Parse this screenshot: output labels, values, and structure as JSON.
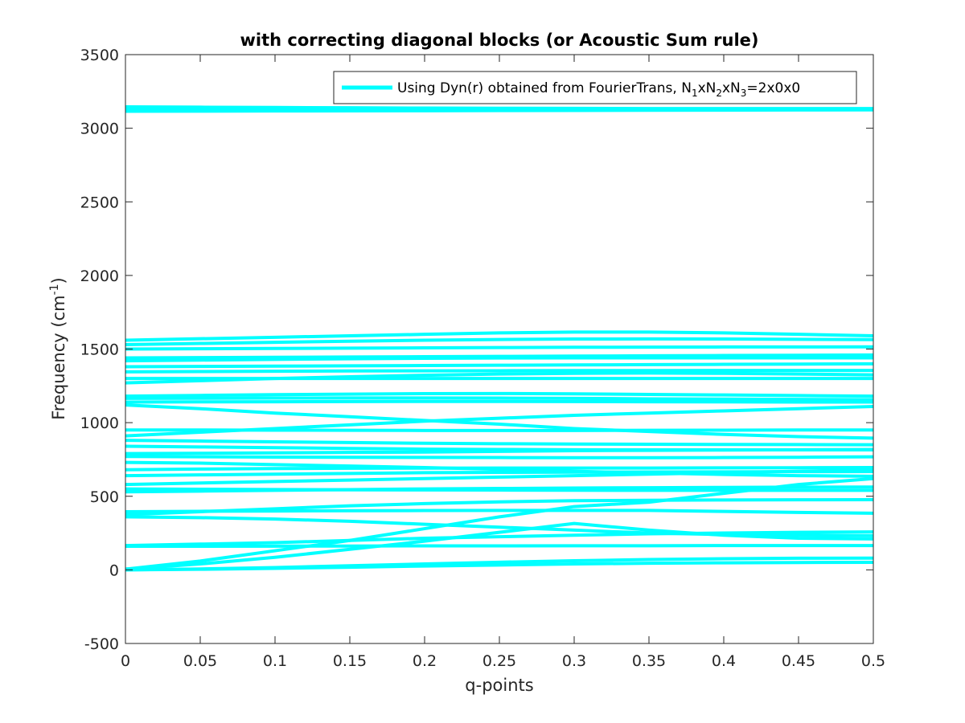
{
  "chart_data": {
    "type": "line",
    "title": "with correcting diagonal blocks (or Acoustic Sum rule)",
    "xlabel": "q-points",
    "ylabel": "Frequency (cm-1)",
    "ylabel_parts": {
      "main": "Frequency (cm",
      "sup": "-1",
      "close": ")"
    },
    "xlim": [
      0,
      0.5
    ],
    "ylim": [
      -500,
      3500
    ],
    "xticks": [
      0,
      0.05,
      0.1,
      0.15,
      0.2,
      0.25,
      0.3,
      0.35,
      0.4,
      0.45,
      0.5
    ],
    "xtick_labels": [
      "0",
      "0.05",
      "0.1",
      "0.15",
      "0.2",
      "0.25",
      "0.3",
      "0.35",
      "0.4",
      "0.45",
      "0.5"
    ],
    "yticks": [
      -500,
      0,
      500,
      1000,
      1500,
      2000,
      2500,
      3000,
      3500
    ],
    "ytick_labels": [
      "-500",
      "0",
      "500",
      "1000",
      "1500",
      "2000",
      "2500",
      "3000",
      "3500"
    ],
    "grid": false,
    "legend_position": "top-right",
    "legend_label": "Using Dyn(r) obtained from FourierTrans, N1xN2xN3=2x0x0",
    "legend_parts": [
      "Using Dyn(r) obtained from FourierTrans, N",
      "1",
      "xN",
      "2",
      "xN",
      "3",
      "=2x0x0"
    ],
    "line_color": "#00FFFF",
    "x": [
      0,
      0.05,
      0.1,
      0.15,
      0.2,
      0.25,
      0.3,
      0.35,
      0.4,
      0.45,
      0.5
    ],
    "series": [
      {
        "values": [
          0,
          4,
          10,
          18,
          26,
          33,
          40,
          45,
          48,
          50,
          51
        ]
      },
      {
        "values": [
          0,
          6,
          16,
          28,
          40,
          52,
          62,
          70,
          76,
          79,
          80
        ]
      },
      {
        "values": [
          5,
          40,
          85,
          140,
          195,
          255,
          315,
          270,
          235,
          215,
          210
        ]
      },
      {
        "values": [
          5,
          60,
          130,
          200,
          280,
          360,
          430,
          460,
          520,
          580,
          620
        ]
      },
      {
        "values": [
          160,
          160,
          161,
          162,
          163,
          163,
          164,
          164,
          165,
          165,
          165
        ]
      },
      {
        "values": [
          165,
          175,
          185,
          200,
          215,
          225,
          235,
          245,
          250,
          255,
          258
        ]
      },
      {
        "values": [
          360,
          355,
          345,
          330,
          310,
          290,
          270,
          250,
          240,
          235,
          232
        ]
      },
      {
        "values": [
          375,
          395,
          415,
          435,
          450,
          462,
          470,
          473,
          475,
          476,
          477
        ]
      },
      {
        "values": [
          395,
          398,
          400,
          402,
          403,
          404,
          404,
          404,
          397,
          390,
          385
        ]
      },
      {
        "values": [
          530,
          535,
          540,
          545,
          550,
          553,
          556,
          558,
          560,
          562,
          563
        ]
      },
      {
        "values": [
          550,
          548,
          546,
          544,
          543,
          542,
          541,
          540,
          540,
          540,
          540
        ]
      },
      {
        "values": [
          580,
          590,
          600,
          610,
          620,
          630,
          640,
          650,
          660,
          670,
          680
        ]
      },
      {
        "values": [
          640,
          645,
          650,
          655,
          660,
          662,
          664,
          665,
          666,
          667,
          668
        ]
      },
      {
        "values": [
          680,
          685,
          688,
          690,
          691,
          692,
          692,
          692,
          693,
          694,
          695
        ]
      },
      {
        "values": [
          730,
          725,
          715,
          705,
          695,
          683,
          670,
          658,
          648,
          640,
          636
        ]
      },
      {
        "values": [
          770,
          768,
          766,
          765,
          764,
          763,
          762,
          762,
          763,
          765,
          768
        ]
      },
      {
        "values": [
          790,
          792,
          795,
          798,
          800,
          805,
          810,
          812,
          814,
          816,
          818
        ]
      },
      {
        "values": [
          840,
          835,
          830,
          825,
          820,
          818,
          816,
          815,
          815,
          815,
          815
        ]
      },
      {
        "values": [
          880,
          875,
          870,
          865,
          860,
          857,
          855,
          853,
          852,
          851,
          850
        ]
      },
      {
        "values": [
          910,
          935,
          960,
          985,
          1010,
          1030,
          1050,
          1065,
          1080,
          1095,
          1110
        ]
      },
      {
        "values": [
          950,
          950,
          949,
          948,
          947,
          947,
          947,
          948,
          949,
          950,
          950
        ]
      },
      {
        "values": [
          1120,
          1095,
          1065,
          1040,
          1015,
          990,
          960,
          940,
          920,
          905,
          895
        ]
      },
      {
        "values": [
          1140,
          1141,
          1142,
          1143,
          1144,
          1144,
          1143,
          1142,
          1141,
          1140,
          1140
        ]
      },
      {
        "values": [
          1165,
          1166,
          1167,
          1168,
          1168,
          1167,
          1165,
          1162,
          1160,
          1158,
          1156
        ]
      },
      {
        "values": [
          1180,
          1185,
          1190,
          1194,
          1197,
          1198,
          1196,
          1192,
          1188,
          1184,
          1180
        ]
      },
      {
        "values": [
          1270,
          1285,
          1300,
          1312,
          1322,
          1330,
          1335,
          1337,
          1335,
          1330,
          1325
        ]
      },
      {
        "values": [
          1300,
          1300,
          1300,
          1300,
          1300,
          1300,
          1300,
          1300,
          1300,
          1300,
          1300
        ]
      },
      {
        "values": [
          1345,
          1347,
          1349,
          1351,
          1352,
          1353,
          1354,
          1354,
          1355,
          1355,
          1355
        ]
      },
      {
        "values": [
          1380,
          1382,
          1384,
          1386,
          1388,
          1390,
          1392,
          1394,
          1396,
          1398,
          1400
        ]
      },
      {
        "values": [
          1420,
          1425,
          1430,
          1434,
          1437,
          1439,
          1440,
          1440,
          1440,
          1440,
          1440
        ]
      },
      {
        "values": [
          1440,
          1442,
          1444,
          1446,
          1448,
          1450,
          1452,
          1454,
          1456,
          1458,
          1460
        ]
      },
      {
        "values": [
          1500,
          1502,
          1504,
          1506,
          1508,
          1510,
          1512,
          1513,
          1514,
          1514,
          1515
        ]
      },
      {
        "values": [
          1530,
          1538,
          1546,
          1553,
          1560,
          1565,
          1568,
          1569,
          1568,
          1566,
          1564
        ]
      },
      {
        "values": [
          1560,
          1570,
          1580,
          1590,
          1600,
          1610,
          1615,
          1615,
          1610,
          1600,
          1590
        ]
      },
      {
        "values": [
          3115,
          3116,
          3117,
          3118,
          3119,
          3120,
          3121,
          3122,
          3123,
          3124,
          3125
        ]
      },
      {
        "values": [
          3130,
          3130,
          3130,
          3130,
          3130,
          3131,
          3131,
          3131,
          3131,
          3131,
          3131
        ]
      },
      {
        "values": [
          3145,
          3143,
          3141,
          3139,
          3137,
          3136,
          3135,
          3134,
          3134,
          3134,
          3134
        ]
      }
    ]
  }
}
